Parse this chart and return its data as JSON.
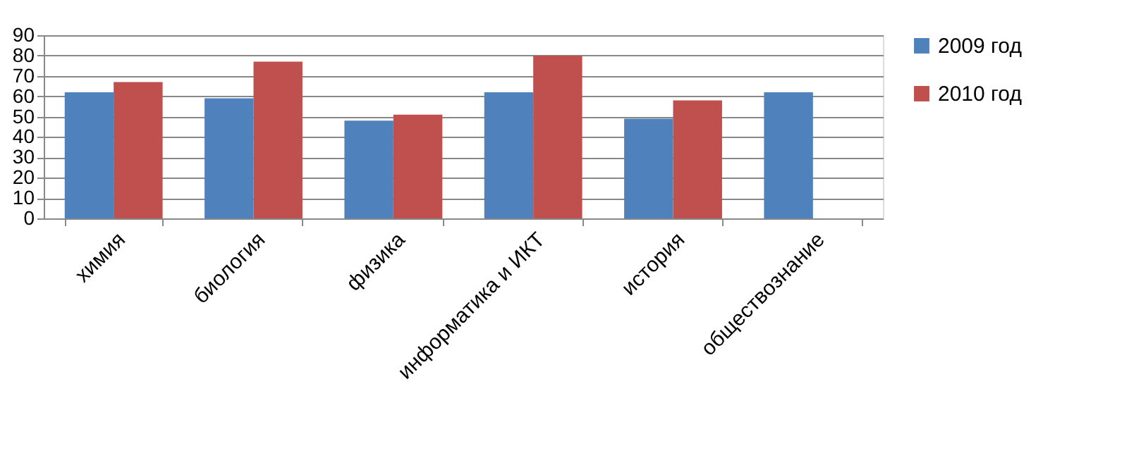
{
  "chart_data": {
    "type": "bar",
    "categories": [
      "химия",
      "биология",
      "физика",
      "информатика и ИКТ",
      "история",
      "обществознание"
    ],
    "series": [
      {
        "name": "2009 год",
        "color": "#4f81bd",
        "values": [
          62,
          59,
          48,
          62,
          49,
          62
        ]
      },
      {
        "name": "2010 год",
        "color": "#c0504d",
        "values": [
          67,
          77,
          51,
          80,
          58,
          null
        ]
      }
    ],
    "ylim": [
      0,
      90
    ],
    "yticks": [
      0,
      10,
      20,
      30,
      40,
      50,
      60,
      70,
      80,
      90
    ],
    "grid": "y",
    "legend": "right"
  }
}
